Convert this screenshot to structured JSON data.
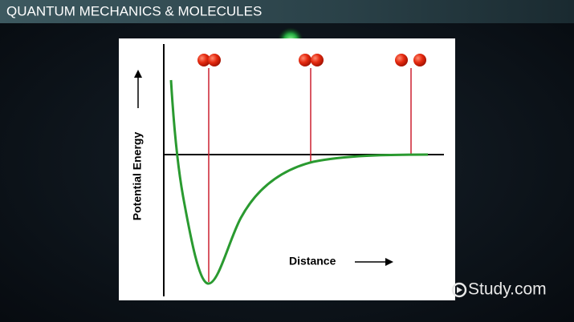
{
  "header": {
    "title": "QUANTUM MECHANICS & MOLECULES"
  },
  "diagram": {
    "y_label": "Potential Energy",
    "x_label": "Distance"
  },
  "watermark": "Study.com"
}
